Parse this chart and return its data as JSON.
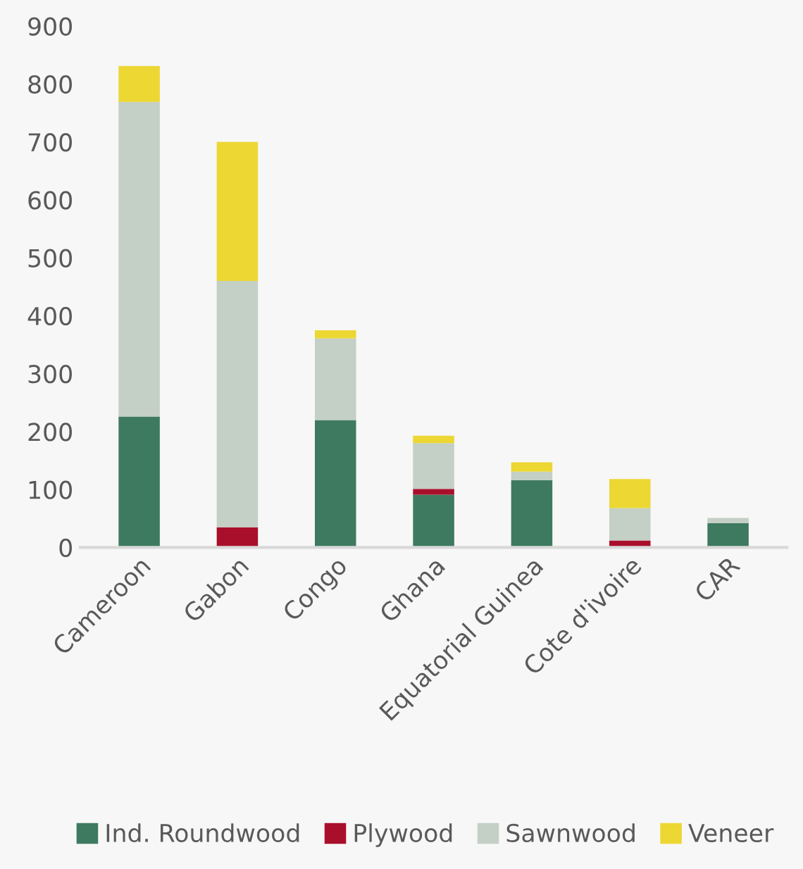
{
  "chart_data": {
    "type": "bar",
    "stacked": true,
    "categories": [
      "Cameroon",
      "Gabon",
      "Congo",
      "Ghana",
      "Equatorial Guinea",
      "Cote d'ivoire",
      "CAR"
    ],
    "series": [
      {
        "name": "Ind. Roundwood",
        "color": "#3e7a5f",
        "values": [
          226,
          0,
          220,
          91,
          116,
          0,
          42
        ]
      },
      {
        "name": "Plywood",
        "color": "#a90f2b",
        "values": [
          0,
          35,
          0,
          10,
          0,
          12,
          0
        ]
      },
      {
        "name": "Sawnwood",
        "color": "#c4cfc5",
        "values": [
          543,
          425,
          141,
          79,
          15,
          56,
          9
        ]
      },
      {
        "name": "Veneer",
        "color": "#ecd733",
        "values": [
          62,
          240,
          14,
          13,
          16,
          50,
          0
        ]
      }
    ],
    "ylim": [
      0,
      900
    ],
    "yticks": [
      0,
      100,
      200,
      300,
      400,
      500,
      600,
      700,
      800,
      900
    ],
    "grid": false,
    "legend": "bottom"
  }
}
